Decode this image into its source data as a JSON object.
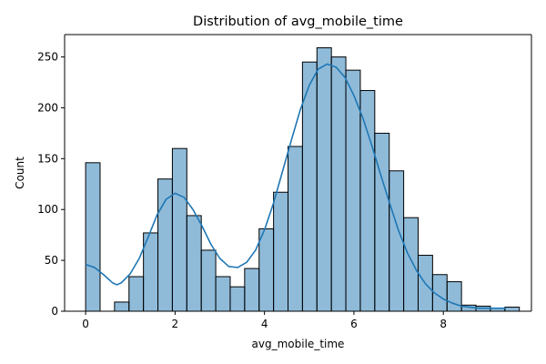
{
  "chart_data": {
    "type": "bar",
    "title": "Distribution of avg_mobile_time",
    "xlabel": "avg_mobile_time",
    "ylabel": "Count",
    "xlim": [
      -0.47,
      9.97
    ],
    "ylim": [
      0,
      272
    ],
    "grid": false,
    "legend": "none",
    "bar_color": "#1f77b4",
    "bar_alpha": 0.5,
    "edge_color": "#000000",
    "kde_color": "#1f77b4",
    "x_ticks": [
      0,
      2,
      4,
      6,
      8
    ],
    "x_tick_labels": [
      "0",
      "2",
      "4",
      "6",
      "8"
    ],
    "y_ticks": [
      0,
      50,
      100,
      150,
      200,
      250
    ],
    "y_tick_labels": [
      "0",
      "50",
      "100",
      "150",
      "200",
      "250"
    ],
    "bins": {
      "start": 0.0,
      "width": 0.3233,
      "counts": [
        146,
        0,
        9,
        34,
        77,
        130,
        160,
        94,
        60,
        34,
        24,
        42,
        81,
        117,
        162,
        245,
        259,
        250,
        237,
        217,
        175,
        138,
        92,
        55,
        36,
        29,
        6,
        5,
        3,
        4
      ]
    },
    "kde": {
      "x": [
        0.0,
        0.2,
        0.4,
        0.6,
        0.7,
        0.8,
        1.0,
        1.2,
        1.4,
        1.6,
        1.8,
        2.0,
        2.2,
        2.4,
        2.6,
        2.8,
        3.0,
        3.2,
        3.4,
        3.6,
        3.8,
        4.0,
        4.2,
        4.4,
        4.6,
        4.8,
        5.0,
        5.2,
        5.4,
        5.6,
        5.8,
        6.0,
        6.2,
        6.4,
        6.6,
        6.8,
        7.0,
        7.2,
        7.4,
        7.6,
        7.8,
        8.0,
        8.2,
        8.4,
        8.6,
        8.8,
        9.0,
        9.2,
        9.4
      ],
      "y": [
        46,
        43,
        36,
        28,
        26,
        28,
        37,
        52,
        73,
        95,
        110,
        116,
        112,
        100,
        84,
        66,
        52,
        44,
        43,
        48,
        60,
        80,
        106,
        137,
        168,
        198,
        222,
        238,
        243,
        240,
        230,
        212,
        190,
        163,
        134,
        106,
        79,
        57,
        40,
        27,
        18,
        12,
        8,
        5,
        4,
        3,
        3,
        3,
        3
      ]
    }
  }
}
